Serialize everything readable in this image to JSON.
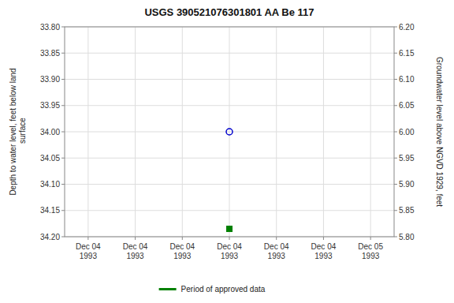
{
  "chart_data": {
    "type": "scatter",
    "title": "USGS 390521076301801 AA Be 117",
    "ylabel": "Depth to water level, feet below land\n surface",
    "y2label": "Groundwater level above NGVD 1929, feet",
    "categories": [
      "Dec 04\n1993",
      "Dec 04\n1993",
      "Dec 04\n1993",
      "Dec 04\n1993",
      "Dec 04\n1993",
      "Dec 04\n1993",
      "Dec 05\n1993"
    ],
    "series": [
      {
        "color": "#0000cc",
        "marker": "circle",
        "values": [
          null,
          null,
          null,
          34.0,
          null,
          null,
          null
        ]
      },
      {
        "name": "Period of approved data",
        "color": "#008000",
        "marker": "square",
        "values": [
          null,
          null,
          null,
          34.185,
          null,
          null,
          null
        ]
      }
    ],
    "ylim": [
      34.2,
      33.8
    ],
    "yticks": [
      {
        "value": 33.8,
        "label": "33.80"
      },
      33.85,
      {
        "value": 33.9,
        "label": "33.90"
      },
      33.95,
      {
        "value": 34,
        "label": "34.00"
      },
      34.05,
      {
        "value": 34.1,
        "label": "34.10"
      },
      34.15,
      {
        "value": 34.2,
        "label": "34.20"
      }
    ],
    "y2lim": [
      5.8,
      6.2
    ],
    "y2ticks": [
      {
        "value": 5.8,
        "label": "5.80"
      },
      5.85,
      {
        "value": 5.9,
        "label": "5.90"
      },
      5.95,
      {
        "value": 6,
        "label": "6.00"
      },
      6.05,
      {
        "value": 6.1,
        "label": "6.10"
      },
      6.15,
      {
        "value": 6.2,
        "label": "6.20"
      }
    ],
    "grid": true,
    "legend": "bottom"
  }
}
